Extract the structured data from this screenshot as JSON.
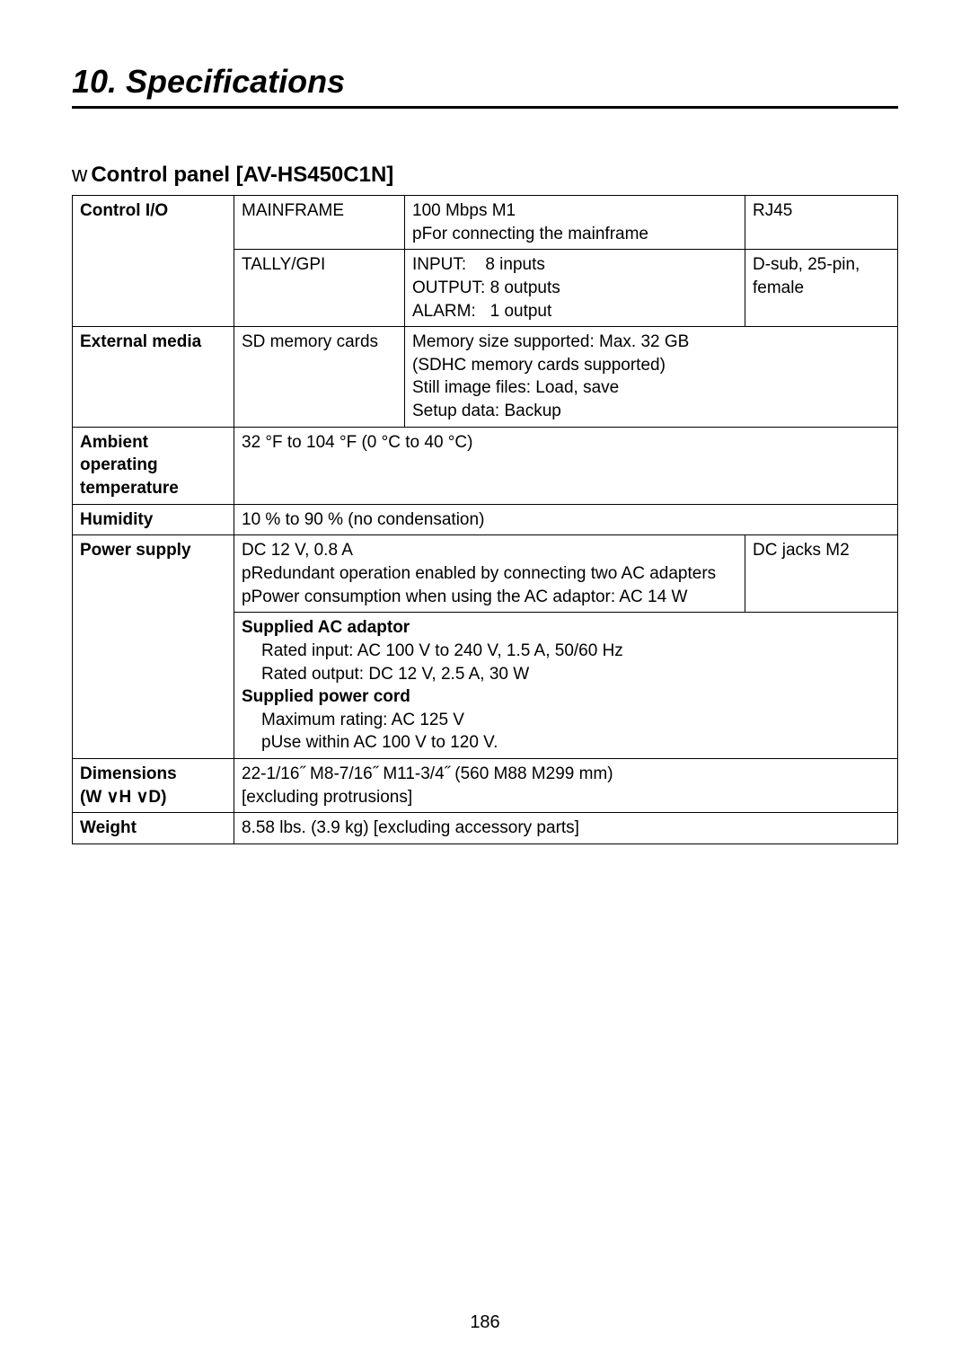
{
  "chapter_title": "10. Specifications",
  "section_bullet": "w",
  "section_title": "Control panel [AV-HS450C1N]",
  "page_number": "186",
  "rows": {
    "control_io": {
      "label": "Control I/O",
      "mainframe": {
        "name": "MAINFRAME",
        "speed": "100 Mbps M1",
        "note_prefix": "p",
        "note": "For connecting the mainframe",
        "connector": "RJ45"
      },
      "tally": {
        "name": "TALLY/GPI",
        "input_label": "INPUT:",
        "input_val": "8 inputs",
        "output_label": "OUTPUT:",
        "output_val": "8 outputs",
        "alarm_label": "ALARM:",
        "alarm_val": "1 output",
        "connector": "D-sub, 25-pin, female"
      }
    },
    "ext_media": {
      "label": "External media",
      "media": "SD memory cards",
      "l1": "Memory size supported: Max. 32 GB",
      "l2": "(SDHC memory cards supported)",
      "l3": "Still image files: Load, save",
      "l4": "Setup data: Backup"
    },
    "ambient": {
      "label_l1": "Ambient operating",
      "label_l2": "temperature",
      "value": "32 °F to 104 °F (0 °C to 40 °C)"
    },
    "humidity": {
      "label": "Humidity",
      "value": "10 % to 90 % (no condensation)"
    },
    "power": {
      "label": "Power supply",
      "main_l1": "DC 12 V, 0.8 A",
      "main_l2_prefix": "p",
      "main_l2": "Redundant operation enabled by connecting two AC adapters",
      "main_l3_prefix": "p",
      "main_l3": "Power consumption when using the AC adaptor: AC 14 W",
      "connector": "DC jacks  M2",
      "ac_heading": "Supplied AC adaptor",
      "ac_l1": "Rated input: AC 100 V to 240 V, 1.5 A, 50/60 Hz",
      "ac_l2": "Rated output: DC 12 V, 2.5 A, 30 W",
      "cord_heading": "Supplied power cord",
      "cord_l1": "Maximum rating: AC 125 V",
      "cord_l2_prefix": "p",
      "cord_l2": "Use within AC 100 V to 120 V."
    },
    "dimensions": {
      "label_l1": "Dimensions",
      "label_l2": "(W ∨H ∨D)",
      "value_l1": "22-1/16˝ M8-7/16˝ M11-3/4˝ (560 M88 M299 mm)",
      "value_l2": "[excluding protrusions]"
    },
    "weight": {
      "label": "Weight",
      "value": "8.58 lbs. (3.9 kg) [excluding accessory parts]"
    }
  }
}
